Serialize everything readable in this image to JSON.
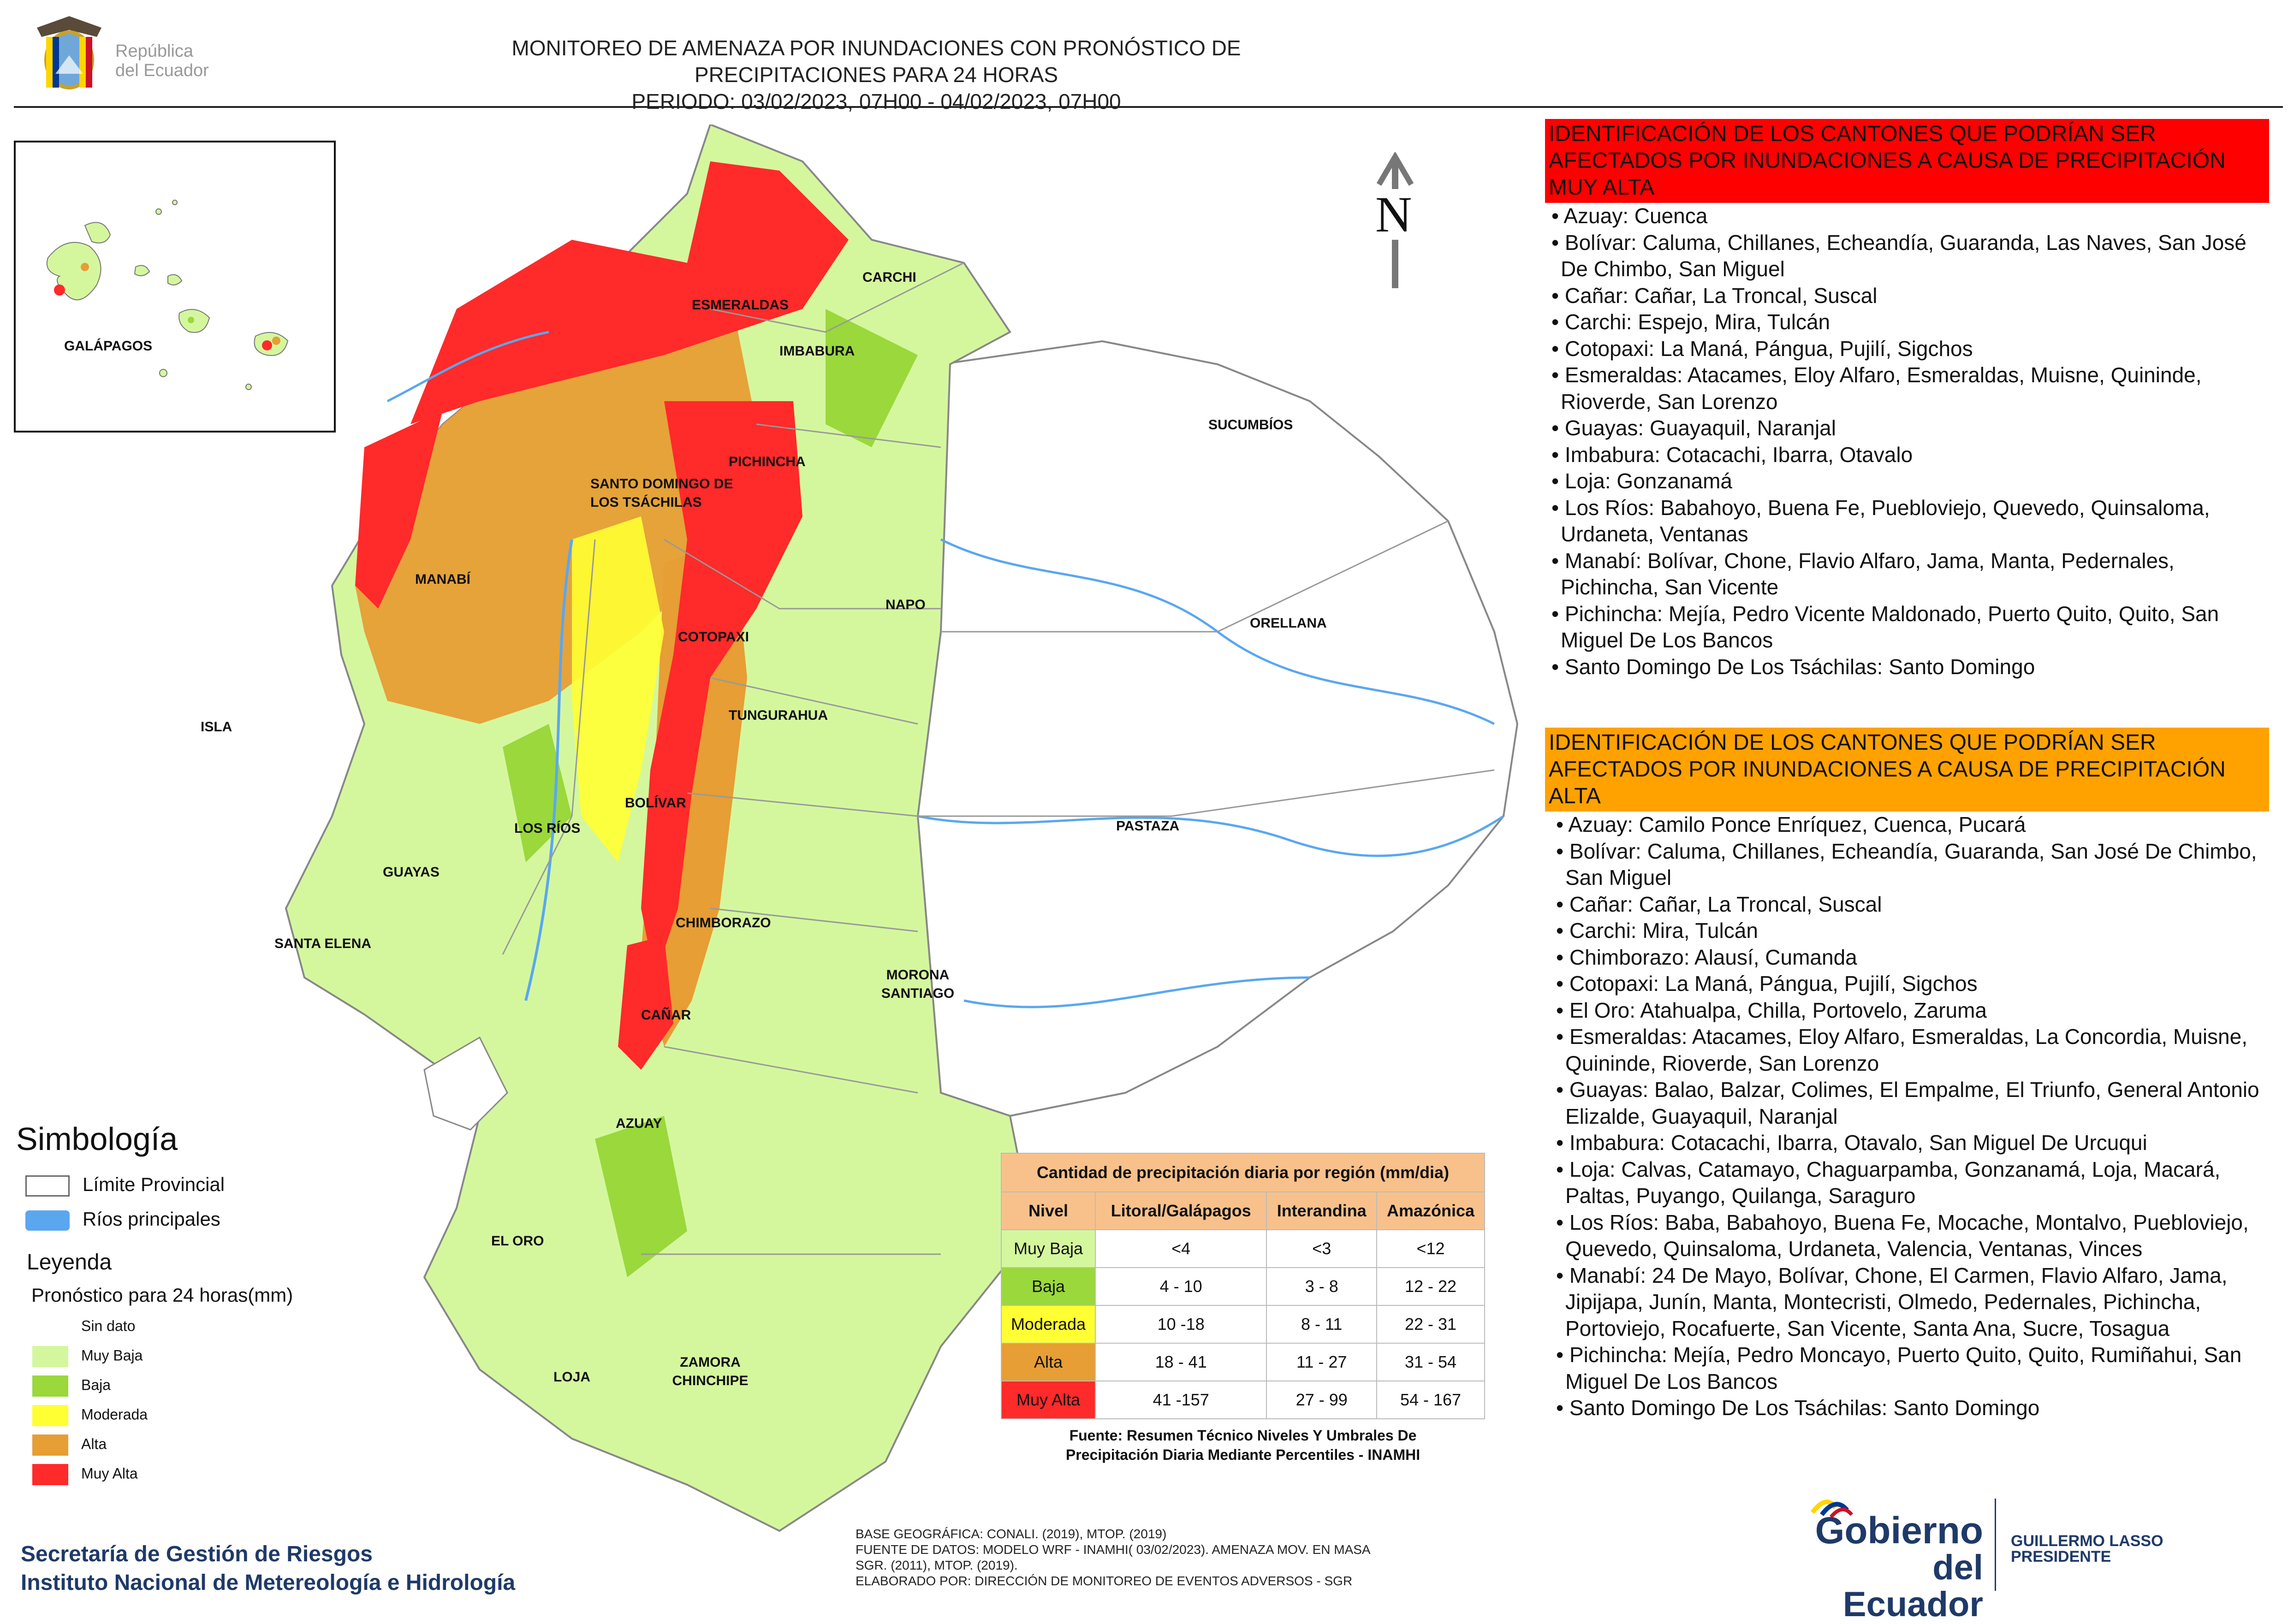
{
  "header": {
    "title_line1": "MONITOREO DE AMENAZA POR INUNDACIONES  CON PRONÓSTICO DE  PRECIPITACIONES PARA 24 HORAS",
    "title_line2": "PERIODO: 03/02/2023, 07H00 - 04/02/2023, 07H00",
    "logo_text_line1": "República",
    "logo_text_line2": "del Ecuador"
  },
  "north_label": "N",
  "map_labels": {
    "galapagos": "GALÁPAGOS",
    "carchi": "CARCHI",
    "esmeraldas": "ESMERALDAS",
    "imbabura": "IMBABURA",
    "sucumbios": "SUCUMBÍOS",
    "pichincha": "PICHINCHA",
    "santo_domingo": "SANTO DOMINGO DE LOS TSÁCHILAS",
    "manabi": "MANABÍ",
    "napo": "NAPO",
    "orellana": "ORELLANA",
    "cotopaxi": "COTOPAXI",
    "tungurahua": "TUNGURAHUA",
    "isla": "ISLA",
    "bolivar": "BOLÍVAR",
    "los_rios": "LOS RÍOS",
    "pastaza": "PASTAZA",
    "guayas": "GUAYAS",
    "chimborazo": "CHIMBORAZO",
    "santa_elena": "SANTA ELENA",
    "morona": "MORONA SANTIAGO",
    "canar": "CAÑAR",
    "azuay": "AZUAY",
    "el_oro": "EL ORO",
    "zamora": "ZAMORA CHINCHIPE",
    "loja": "LOJA"
  },
  "simbologia": {
    "title": "Simbología",
    "limite": "Límite Provincial",
    "rios": "Ríos principales"
  },
  "leyenda": {
    "title": "Leyenda",
    "subtitle": "Pronóstico para 24 horas(mm)",
    "items": [
      "Sin dato",
      "Muy Baja",
      "Baja",
      "Moderada",
      "Alta",
      "Muy Alta"
    ]
  },
  "colors": {
    "muy_baja": "#d4f79e",
    "baja": "#9ad83c",
    "moderada": "#ffff33",
    "alta": "#e69e35",
    "muy_alta": "#ff2a2a",
    "table_header": "#f8c18b",
    "head_red": "#ff0000",
    "head_orange": "#ffa200",
    "rivers": "#5aa7f0"
  },
  "table": {
    "title": "Cantidad de precipitación diaria por región (mm/dia)",
    "headers": [
      "Nivel",
      "Litoral/Galápagos",
      "Interandina",
      "Amazónica"
    ],
    "rows": [
      [
        "Muy Baja",
        "<4",
        "<3",
        "<12"
      ],
      [
        "Baja",
        "4 - 10",
        "3 - 8",
        "12 - 22"
      ],
      [
        "Moderada",
        "10 -18",
        "8 - 11",
        "22 - 31"
      ],
      [
        "Alta",
        "18 - 41",
        "11 - 27",
        "31 - 54"
      ],
      [
        "Muy Alta",
        "41 -157",
        "27 - 99",
        "54 - 167"
      ]
    ],
    "source_line1": "Fuente: Resumen Técnico Niveles Y Umbrales De",
    "source_line2": "Precipitación Diaria Mediante Percentiles - INAMHI"
  },
  "muy_alta_panel": {
    "heading": "IDENTIFICACIÓN DE LOS CANTONES QUE PODRÍAN SER AFECTADOS POR INUNDACIONES  A CAUSA DE PRECIPITACIÓN MUY ALTA",
    "items": [
      "• Azuay: Cuenca",
      "• Bolívar: Caluma, Chillanes, Echeandía, Guaranda, Las Naves, San José De Chimbo, San Miguel",
      "• Cañar: Cañar, La Troncal, Suscal",
      "• Carchi: Espejo, Mira, Tulcán",
      "• Cotopaxi: La Maná, Pángua, Pujilí, Sigchos",
      "• Esmeraldas: Atacames, Eloy Alfaro, Esmeraldas, Muisne, Quininde, Rioverde, San Lorenzo",
      "• Guayas: Guayaquil, Naranjal",
      "• Imbabura: Cotacachi, Ibarra, Otavalo",
      "• Loja: Gonzanamá",
      "• Los Ríos: Babahoyo, Buena Fe, Puebloviejo, Quevedo, Quinsaloma, Urdaneta, Ventanas",
      "• Manabí: Bolívar, Chone, Flavio Alfaro, Jama, Manta, Pedernales, Pichincha, San Vicente",
      "• Pichincha: Mejía, Pedro Vicente Maldonado, Puerto Quito, Quito, San Miguel De Los Bancos",
      "• Santo Domingo De Los Tsáchilas: Santo Domingo"
    ]
  },
  "alta_panel": {
    "heading": "IDENTIFICACIÓN DE LOS CANTONES QUE  PODRÍAN SER AFECTADOS POR INUNDACIONES  A CAUSA DE PRECIPITACIÓN ALTA",
    "items": [
      "• Azuay: Camilo Ponce Enríquez, Cuenca, Pucará",
      "• Bolívar: Caluma, Chillanes, Echeandía, Guaranda, San José De Chimbo, San Miguel",
      "• Cañar: Cañar, La Troncal, Suscal",
      "• Carchi: Mira, Tulcán",
      "• Chimborazo: Alausí, Cumanda",
      "• Cotopaxi: La Maná, Pángua, Pujilí, Sigchos",
      "• El Oro: Atahualpa, Chilla, Portovelo, Zaruma",
      "• Esmeraldas: Atacames, Eloy Alfaro, Esmeraldas, La Concordia, Muisne, Quininde, Rioverde, San Lorenzo",
      "• Guayas: Balao, Balzar, Colimes, El Empalme, El Triunfo, General Antonio Elizalde, Guayaquil, Naranjal",
      "• Imbabura: Cotacachi, Ibarra, Otavalo, San Miguel De Urcuqui",
      "• Loja: Calvas, Catamayo, Chaguarpamba, Gonzanamá, Loja, Macará, Paltas, Puyango, Quilanga, Saraguro",
      "• Los Ríos: Baba, Babahoyo, Buena Fe, Mocache, Montalvo, Puebloviejo, Quevedo, Quinsaloma, Urdaneta, Valencia, Ventanas, Vinces",
      "• Manabí: 24 De Mayo, Bolívar, Chone, El Carmen, Flavio Alfaro, Jama, Jipijapa, Junín, Manta, Montecristi, Olmedo, Pedernales, Pichincha, Portoviejo, Rocafuerte, San Vicente, Santa Ana, Sucre, Tosagua",
      "• Pichincha: Mejía, Pedro Moncayo, Puerto Quito, Quito, Rumiñahui, San Miguel De Los Bancos",
      "• Santo Domingo De Los Tsáchilas: Santo Domingo"
    ]
  },
  "footer": {
    "org_line1": "Secretaría de Gestión de Riesgos",
    "org_line2": "Instituto Nacional de Metereología e Hidrología",
    "credit_line1": "BASE GEOGRÁFICA: CONALI. (2019), MTOP. (2019)",
    "credit_line2": "FUENTE DE DATOS: MODELO WRF - INAMHI( 03/02/2023).  AMENAZA MOV. EN MASA",
    "credit_line3": "SGR. (2011), MTOP. (2019).",
    "credit_line4": "ELABORADO POR: DIRECCIÓN DE MONITOREO DE EVENTOS ADVERSOS - SGR",
    "gob_line1": "Gobierno",
    "gob_line2": "del Ecuador",
    "president_line1": "GUILLERMO LASSO",
    "president_line2": "PRESIDENTE"
  }
}
